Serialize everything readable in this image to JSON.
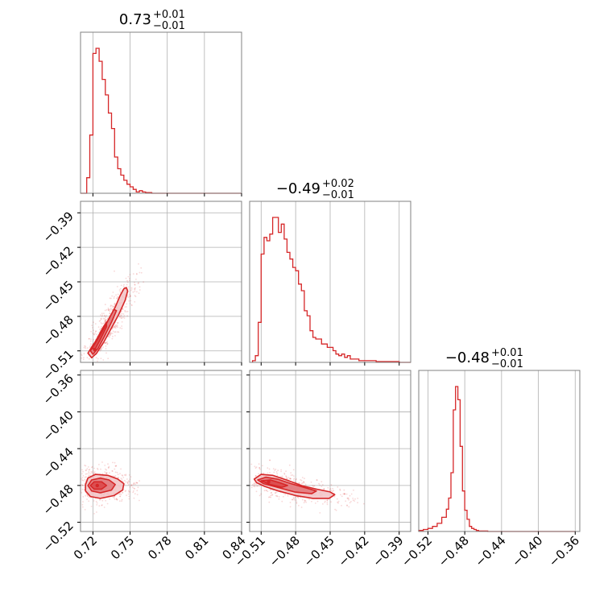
{
  "colors": {
    "accent": "#d62728",
    "fill_inner": "#e07377",
    "fill_outer": "#f2c3c5",
    "grid": "#b0b0b0",
    "frame": "#808080"
  },
  "chart_data": {
    "type": "corner",
    "parameters": 3,
    "titles": [
      {
        "value": "0.73",
        "plus": "+0.01",
        "minus": "−0.01"
      },
      {
        "value": "−0.49",
        "plus": "+0.02",
        "minus": "−0.01"
      },
      {
        "value": "−0.48",
        "plus": "+0.01",
        "minus": "−0.01"
      }
    ],
    "ranges": [
      [
        0.71,
        0.84
      ],
      [
        -0.52,
        -0.38
      ],
      [
        -0.53,
        -0.355
      ]
    ],
    "ticks": [
      {
        "values": [
          0.72,
          0.75,
          0.78,
          0.81,
          0.84
        ],
        "labels": [
          "0.72",
          "0.75",
          "0.78",
          "0.81",
          "0.84"
        ]
      },
      {
        "values": [
          -0.51,
          -0.48,
          -0.45,
          -0.42,
          -0.39
        ],
        "labels": [
          "−0.51",
          "−0.48",
          "−0.45",
          "−0.42",
          "−0.39"
        ]
      },
      {
        "values": [
          -0.52,
          -0.48,
          -0.44,
          -0.4,
          -0.36
        ],
        "labels": [
          "−0.52",
          "−0.48",
          "−0.44",
          "−0.40",
          "−0.36"
        ]
      }
    ],
    "histograms": [
      {
        "param": 0,
        "edges": [
          0.71,
          0.7125,
          0.715,
          0.7175,
          0.72,
          0.7225,
          0.725,
          0.7275,
          0.73,
          0.7325,
          0.735,
          0.7375,
          0.74,
          0.7425,
          0.745,
          0.7475,
          0.75,
          0.7525,
          0.755,
          0.7575,
          0.76,
          0.7625,
          0.765,
          0.7675,
          0.77,
          0.84
        ],
        "counts": [
          0,
          0,
          12,
          45,
          108,
          112,
          102,
          88,
          76,
          62,
          50,
          28,
          19,
          14,
          10,
          7,
          5,
          3,
          1,
          2,
          1,
          0.5,
          0.5,
          0,
          0
        ]
      },
      {
        "param": 1,
        "edges": [
          -0.5175,
          -0.515,
          -0.5125,
          -0.51,
          -0.5075,
          -0.505,
          -0.5025,
          -0.5,
          -0.4975,
          -0.495,
          -0.4925,
          -0.49,
          -0.4875,
          -0.485,
          -0.4825,
          -0.48,
          -0.4775,
          -0.475,
          -0.4725,
          -0.47,
          -0.4675,
          -0.465,
          -0.4625,
          -0.46,
          -0.4575,
          -0.455,
          -0.4525,
          -0.45,
          -0.4475,
          -0.445,
          -0.4425,
          -0.44,
          -0.4375,
          -0.435,
          -0.4325,
          -0.43,
          -0.4275,
          -0.425,
          -0.42,
          -0.415,
          -0.41,
          -0.4,
          -0.39,
          -0.38
        ],
        "counts": [
          1,
          4,
          24,
          65,
          75,
          73,
          77,
          87,
          87,
          78,
          83,
          74,
          66,
          62,
          57,
          55,
          47,
          43,
          31,
          28,
          19,
          15,
          14,
          14,
          11,
          11,
          9,
          9,
          7,
          5,
          4,
          5,
          3,
          4,
          2,
          2,
          2,
          1,
          1,
          1,
          0.5,
          0.5,
          0
        ]
      },
      {
        "param": 2,
        "edges": [
          -0.53,
          -0.525,
          -0.52,
          -0.515,
          -0.51,
          -0.505,
          -0.5,
          -0.4975,
          -0.495,
          -0.4925,
          -0.49,
          -0.4875,
          -0.485,
          -0.4825,
          -0.48,
          -0.4775,
          -0.475,
          -0.4725,
          -0.47,
          -0.4675,
          -0.465,
          -0.46,
          -0.455,
          -0.45,
          -0.44,
          -0.36
        ],
        "counts": [
          1,
          2,
          3,
          5,
          8,
          14,
          22,
          33,
          58,
          120,
          143,
          130,
          84,
          40,
          21,
          12,
          5,
          3,
          2,
          1,
          0.5,
          0.5,
          0,
          0,
          0
        ]
      }
    ],
    "contours": [
      {
        "x_param": 0,
        "y_param": 1,
        "levels": [
          {
            "points": [
              [
                0.716,
                -0.512
              ],
              [
                0.72,
                -0.505
              ],
              [
                0.726,
                -0.496
              ],
              [
                0.732,
                -0.484
              ],
              [
                0.738,
                -0.472
              ],
              [
                0.742,
                -0.462
              ],
              [
                0.745,
                -0.456
              ],
              [
                0.747,
                -0.455
              ],
              [
                0.748,
                -0.458
              ],
              [
                0.746,
                -0.466
              ],
              [
                0.741,
                -0.478
              ],
              [
                0.735,
                -0.49
              ],
              [
                0.729,
                -0.502
              ],
              [
                0.723,
                -0.512
              ],
              [
                0.719,
                -0.516
              ]
            ]
          },
          {
            "points": [
              [
                0.718,
                -0.51
              ],
              [
                0.722,
                -0.503
              ],
              [
                0.727,
                -0.494
              ],
              [
                0.733,
                -0.482
              ],
              [
                0.737,
                -0.474
              ],
              [
                0.739,
                -0.475
              ],
              [
                0.735,
                -0.485
              ],
              [
                0.729,
                -0.498
              ],
              [
                0.724,
                -0.508
              ],
              [
                0.72,
                -0.513
              ]
            ]
          },
          {
            "points": [
              [
                0.719,
                -0.508
              ],
              [
                0.723,
                -0.5
              ],
              [
                0.728,
                -0.49
              ],
              [
                0.731,
                -0.485
              ],
              [
                0.731,
                -0.489
              ],
              [
                0.726,
                -0.5
              ],
              [
                0.722,
                -0.508
              ]
            ]
          }
        ],
        "peak": [
          0.7215,
          -0.509
        ]
      },
      {
        "x_param": 0,
        "y_param": 2,
        "levels": [
          {
            "points": [
              [
                0.714,
                -0.479
              ],
              [
                0.716,
                -0.472
              ],
              [
                0.722,
                -0.468
              ],
              [
                0.732,
                -0.469
              ],
              [
                0.74,
                -0.473
              ],
              [
                0.745,
                -0.478
              ],
              [
                0.744,
                -0.485
              ],
              [
                0.737,
                -0.491
              ],
              [
                0.726,
                -0.494
              ],
              [
                0.718,
                -0.492
              ],
              [
                0.714,
                -0.486
              ]
            ]
          },
          {
            "points": [
              [
                0.716,
                -0.48
              ],
              [
                0.719,
                -0.474
              ],
              [
                0.726,
                -0.472
              ],
              [
                0.733,
                -0.474
              ],
              [
                0.738,
                -0.479
              ],
              [
                0.735,
                -0.485
              ],
              [
                0.726,
                -0.488
              ],
              [
                0.719,
                -0.486
              ]
            ]
          },
          {
            "points": [
              [
                0.718,
                -0.48
              ],
              [
                0.721,
                -0.476
              ],
              [
                0.727,
                -0.476
              ],
              [
                0.731,
                -0.48
              ],
              [
                0.727,
                -0.484
              ],
              [
                0.721,
                -0.484
              ]
            ]
          }
        ],
        "peak": [
          0.7235,
          -0.48
        ]
      },
      {
        "x_param": 1,
        "y_param": 2,
        "levels": [
          {
            "points": [
              [
                -0.516,
                -0.473
              ],
              [
                -0.51,
                -0.468
              ],
              [
                -0.5,
                -0.469
              ],
              [
                -0.488,
                -0.474
              ],
              [
                -0.475,
                -0.48
              ],
              [
                -0.462,
                -0.484
              ],
              [
                -0.45,
                -0.487
              ],
              [
                -0.446,
                -0.49
              ],
              [
                -0.451,
                -0.494
              ],
              [
                -0.465,
                -0.494
              ],
              [
                -0.48,
                -0.491
              ],
              [
                -0.495,
                -0.486
              ],
              [
                -0.507,
                -0.481
              ],
              [
                -0.514,
                -0.477
              ]
            ]
          },
          {
            "points": [
              [
                -0.513,
                -0.474
              ],
              [
                -0.506,
                -0.471
              ],
              [
                -0.496,
                -0.473
              ],
              [
                -0.484,
                -0.478
              ],
              [
                -0.47,
                -0.483
              ],
              [
                -0.462,
                -0.486
              ],
              [
                -0.466,
                -0.489
              ],
              [
                -0.481,
                -0.487
              ],
              [
                -0.496,
                -0.482
              ],
              [
                -0.508,
                -0.478
              ]
            ]
          },
          {
            "points": [
              [
                -0.51,
                -0.475
              ],
              [
                -0.502,
                -0.474
              ],
              [
                -0.494,
                -0.477
              ],
              [
                -0.487,
                -0.48
              ],
              [
                -0.492,
                -0.482
              ],
              [
                -0.502,
                -0.479
              ]
            ]
          }
        ],
        "peak": [
          -0.5035,
          -0.476
        ]
      }
    ]
  }
}
